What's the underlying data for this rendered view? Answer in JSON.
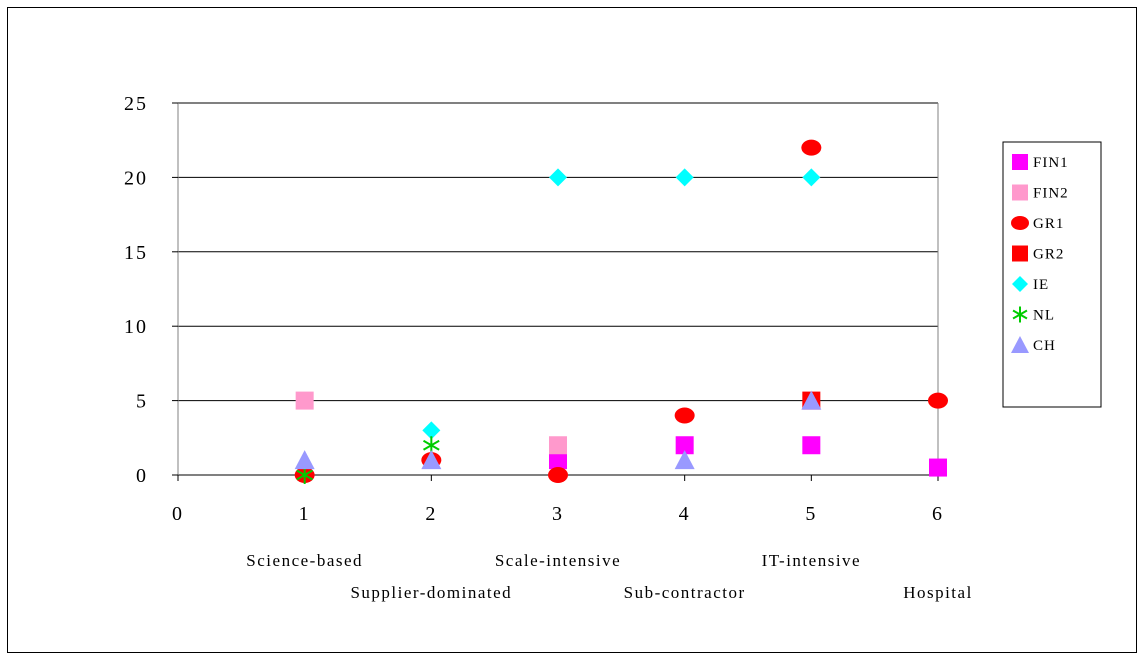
{
  "chart_data": {
    "type": "scatter",
    "xlim": [
      0,
      6
    ],
    "ylim": [
      0,
      25
    ],
    "x_ticks": [
      0,
      1,
      2,
      3,
      4,
      5,
      6
    ],
    "y_ticks": [
      0,
      5,
      10,
      15,
      20,
      25
    ],
    "y_tick_labels": [
      "0",
      "5",
      "10",
      "15",
      "20",
      "25"
    ],
    "grid": "horizontal",
    "legend_position": "right",
    "category_labels": [
      {
        "x": 1,
        "label": "Science-based",
        "row": 1
      },
      {
        "x": 2,
        "label": "Supplier-dominated",
        "row": 2
      },
      {
        "x": 3,
        "label": "Scale-intensive",
        "row": 1
      },
      {
        "x": 4,
        "label": "Sub-contractor",
        "row": 2
      },
      {
        "x": 5,
        "label": "IT-intensive",
        "row": 1
      },
      {
        "x": 6,
        "label": "Hospital",
        "row": 2
      }
    ],
    "series": [
      {
        "name": "FIN1",
        "marker": "square",
        "color": "#ff00ff",
        "points": [
          [
            3,
            1
          ],
          [
            4,
            2
          ],
          [
            5,
            2
          ],
          [
            6,
            0.5
          ]
        ]
      },
      {
        "name": "FIN2",
        "marker": "square",
        "color": "#ff99cc",
        "points": [
          [
            1,
            5
          ],
          [
            3,
            2
          ]
        ]
      },
      {
        "name": "GR1",
        "marker": "circle",
        "color": "#ff0000",
        "points": [
          [
            1,
            0
          ],
          [
            2,
            1
          ],
          [
            3,
            0
          ],
          [
            4,
            4
          ],
          [
            5,
            22
          ],
          [
            6,
            5
          ]
        ]
      },
      {
        "name": "GR2",
        "marker": "square",
        "color": "#ff0000",
        "points": [
          [
            5,
            5
          ]
        ]
      },
      {
        "name": "IE",
        "marker": "diamond",
        "color": "#00ffff",
        "points": [
          [
            2,
            3
          ],
          [
            3,
            20
          ],
          [
            4,
            20
          ],
          [
            5,
            20
          ]
        ]
      },
      {
        "name": "NL",
        "marker": "asterisk",
        "color": "#00cc00",
        "points": [
          [
            1,
            0
          ],
          [
            2,
            2
          ]
        ]
      },
      {
        "name": "CH",
        "marker": "triangle",
        "color": "#9999ff",
        "points": [
          [
            1,
            1
          ],
          [
            2,
            1
          ],
          [
            4,
            1
          ],
          [
            5,
            5
          ]
        ]
      }
    ]
  }
}
